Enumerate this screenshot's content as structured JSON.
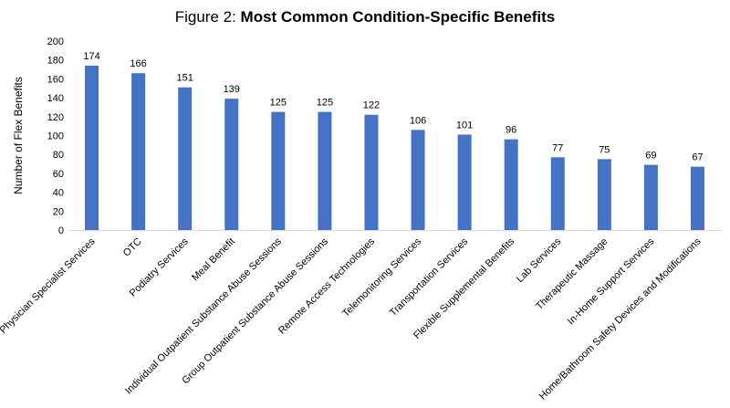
{
  "chart_data": {
    "type": "bar",
    "title_prefix": "Figure 2: ",
    "title_main": "Most Common Condition-Specific Benefits",
    "xlabel": "",
    "ylabel": "Number of Flex Benefits",
    "ylim": [
      0,
      200
    ],
    "ytick_step": 20,
    "yticks": [
      "0",
      "20",
      "40",
      "60",
      "80",
      "100",
      "120",
      "140",
      "160",
      "180",
      "200"
    ],
    "grid": false,
    "legend": "none",
    "bar_color": "#4472C4",
    "categories": [
      "Physician Specialist Services",
      "OTC",
      "Podiatry Services",
      "Meal Benefit",
      "Individual Outpatient Substance Abuse Sessions",
      "Group Outpatient Substance Abuse Sessions",
      "Remote Access Technologies",
      "Telemonitoring Services",
      "Transportation Services",
      "Flexible Supplemental Benefits",
      "Lab Services",
      "Therapeutic Massage",
      "In-Home Support Services",
      "Home/Bathroom Safety Devices and Modifications"
    ],
    "values": [
      174,
      166,
      151,
      139,
      125,
      125,
      122,
      106,
      101,
      96,
      77,
      75,
      69,
      67
    ]
  }
}
